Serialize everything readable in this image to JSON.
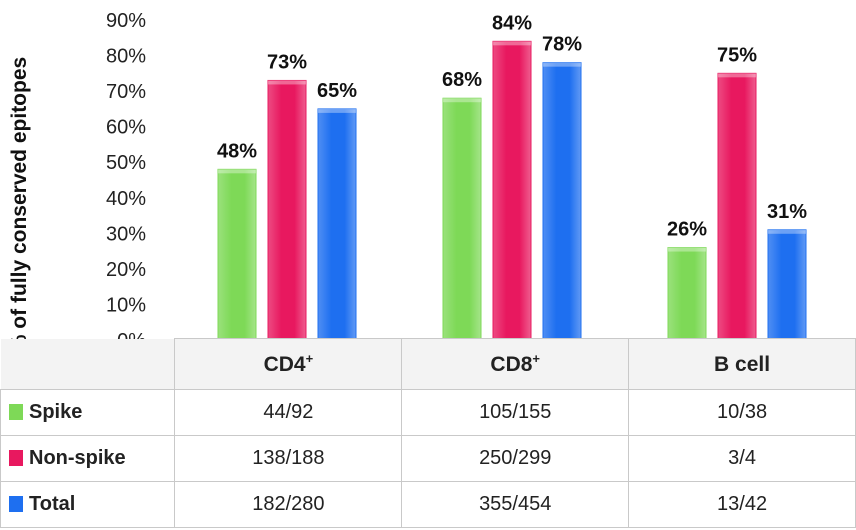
{
  "chart_data": {
    "type": "bar",
    "ylabel": "% of fully conserved epitopes",
    "ylim": [
      0,
      90
    ],
    "yticks": [
      "0%",
      "10%",
      "20%",
      "30%",
      "40%",
      "50%",
      "60%",
      "70%",
      "80%",
      "90%"
    ],
    "categories": [
      {
        "base": "CD4",
        "sup": "+"
      },
      {
        "base": "CD8",
        "sup": "+"
      },
      {
        "base": "B cell",
        "sup": ""
      }
    ],
    "series": [
      {
        "name": "Spike",
        "color": "#7ed957",
        "values": [
          48,
          68,
          26
        ],
        "labels": [
          "48%",
          "68%",
          "26%"
        ],
        "counts": [
          "44/92",
          "105/155",
          "10/38"
        ]
      },
      {
        "name": "Non-spike",
        "color": "#e8185f",
        "values": [
          73,
          84,
          75
        ],
        "labels": [
          "73%",
          "84%",
          "75%"
        ],
        "counts": [
          "138/188",
          "250/299",
          "3/4"
        ]
      },
      {
        "name": "Total",
        "color": "#1e6ff0",
        "values": [
          65,
          78,
          31
        ],
        "labels": [
          "65%",
          "78%",
          "31%"
        ],
        "counts": [
          "182/280",
          "355/454",
          "13/42"
        ]
      }
    ]
  }
}
